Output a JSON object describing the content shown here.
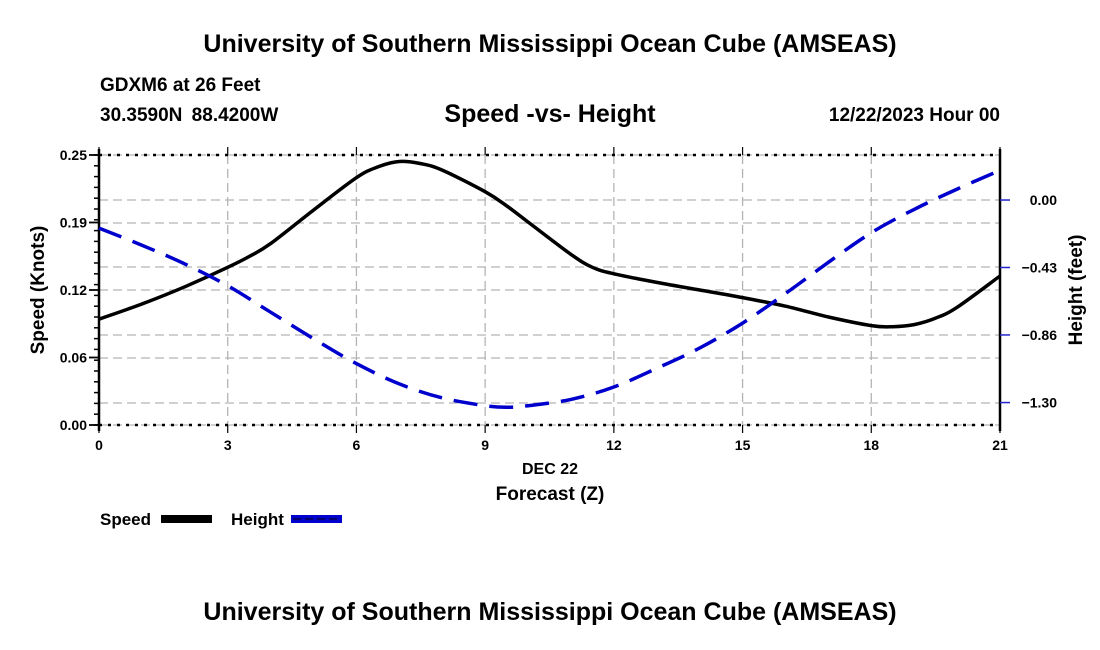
{
  "header": {
    "title": "University of Southern Mississippi Ocean Cube (AMSEAS)",
    "station": "GDXM6 at 26 Feet",
    "coordinates": "30.3590N  88.4200W",
    "subtitle": "Speed -vs- Height",
    "datetime": "12/22/2023 Hour 00"
  },
  "footer": {
    "title": "University of Southern Mississippi Ocean Cube (AMSEAS)"
  },
  "chart_data": {
    "type": "line",
    "title": "Speed -vs- Height",
    "xlabel": "Forecast (Z)",
    "xsublabel": "DEC 22",
    "ylabel": "Speed (Knots)",
    "y2label": "Height (feet)",
    "xlim": [
      0,
      21
    ],
    "ylim": [
      0,
      0.25
    ],
    "y2lim": [
      -1.444,
      0.289
    ],
    "x_ticks": [
      0,
      3,
      6,
      9,
      12,
      15,
      18,
      21
    ],
    "x_tick_labels": [
      "0",
      "3",
      "6",
      "9",
      "12",
      "15",
      "18",
      "21"
    ],
    "y_ticks": [
      0,
      0.0625,
      0.125,
      0.1875,
      0.25
    ],
    "y_tick_labels": [
      "0.00",
      "0.06",
      "0.12",
      "0.19",
      "0.25"
    ],
    "y2_ticks": [
      0,
      -0.433,
      -0.866,
      -1.3
    ],
    "y2_tick_labels": [
      "0.00",
      "−0.43",
      "−0.86",
      "−1.30"
    ],
    "grid": true,
    "legend_position": "bottom-left",
    "series": [
      {
        "name": "Speed",
        "axis": "left",
        "color": "#000000",
        "style": "solid",
        "x": [
          0,
          1,
          2,
          3,
          3.5,
          4,
          5,
          6,
          6.5,
          7,
          7.5,
          8,
          9,
          9.5,
          10,
          11,
          11.5,
          12,
          13,
          14,
          15,
          16,
          17,
          18,
          18.5,
          19,
          19.5,
          20,
          21
        ],
        "values": [
          0.098,
          0.112,
          0.128,
          0.146,
          0.156,
          0.168,
          0.199,
          0.229,
          0.239,
          0.244,
          0.242,
          0.236,
          0.216,
          0.203,
          0.188,
          0.158,
          0.146,
          0.14,
          0.132,
          0.125,
          0.118,
          0.11,
          0.1,
          0.092,
          0.091,
          0.093,
          0.099,
          0.109,
          0.138
        ]
      },
      {
        "name": "Height",
        "axis": "right",
        "color": "#0000cc",
        "style": "dashed",
        "x": [
          0,
          1,
          2,
          3,
          4,
          5,
          6,
          7,
          8,
          9,
          9.5,
          10,
          11,
          12,
          13,
          14,
          15,
          16,
          17,
          18,
          19,
          20,
          21
        ],
        "values": [
          -0.18,
          -0.29,
          -0.41,
          -0.55,
          -0.72,
          -0.89,
          -1.05,
          -1.18,
          -1.27,
          -1.32,
          -1.33,
          -1.32,
          -1.28,
          -1.2,
          -1.08,
          -0.95,
          -0.79,
          -0.6,
          -0.4,
          -0.21,
          -0.06,
          0.07,
          0.19
        ]
      }
    ]
  }
}
